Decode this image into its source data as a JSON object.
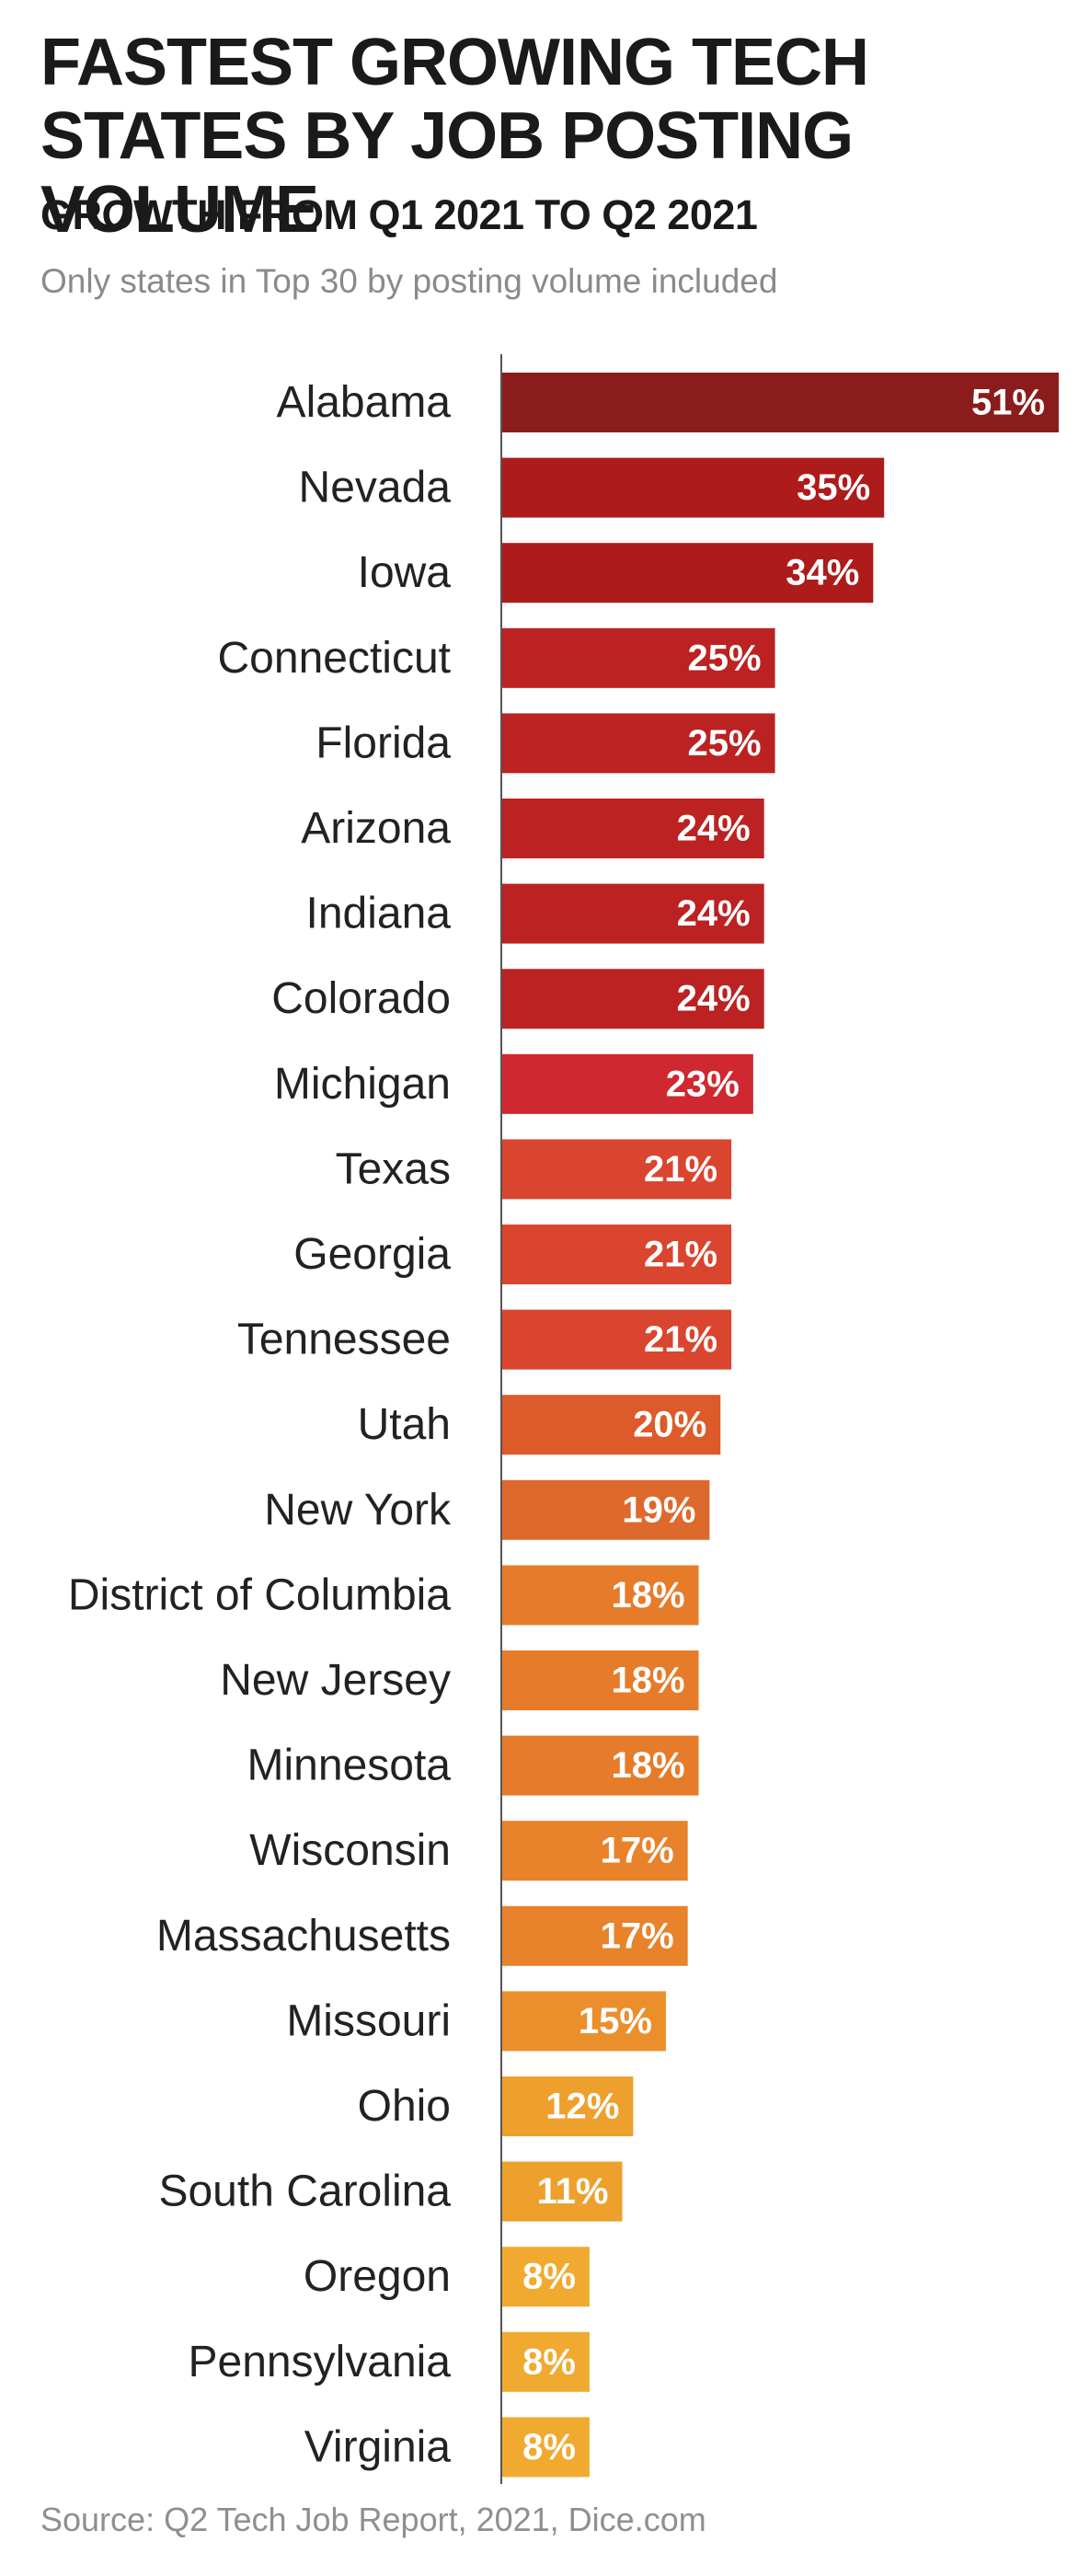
{
  "chart_data": {
    "type": "bar",
    "orientation": "horizontal",
    "title": "FASTEST GROWING TECH STATES BY JOB POSTING VOLUME",
    "subtitle": "GROWTH FROM Q1 2021 TO Q2 2021",
    "note": "Only states in Top 30 by posting volume included",
    "source": "Source: Q2 Tech Job Report, 2021, Dice.com",
    "categories": [
      "Alabama",
      "Nevada",
      "Iowa",
      "Connecticut",
      "Florida",
      "Arizona",
      "Indiana",
      "Colorado",
      "Michigan",
      "Texas",
      "Georgia",
      "Tennessee",
      "Utah",
      "New York",
      "District of Columbia",
      "New Jersey",
      "Minnesota",
      "Wisconsin",
      "Massachusetts",
      "Missouri",
      "Ohio",
      "South Carolina",
      "Oregon",
      "Pennsylvania",
      "Virginia"
    ],
    "values": [
      51,
      35,
      34,
      25,
      25,
      24,
      24,
      24,
      23,
      21,
      21,
      21,
      20,
      19,
      18,
      18,
      18,
      17,
      17,
      15,
      12,
      11,
      8,
      8,
      8
    ],
    "value_labels": [
      "51%",
      "35%",
      "34%",
      "25%",
      "25%",
      "24%",
      "24%",
      "24%",
      "23%",
      "21%",
      "21%",
      "21%",
      "20%",
      "19%",
      "18%",
      "18%",
      "18%",
      "17%",
      "17%",
      "15%",
      "12%",
      "11%",
      "8%",
      "8%",
      "8%"
    ],
    "colors": [
      "#8b1c1c",
      "#ae1b1b",
      "#ae1b1b",
      "#bc2222",
      "#bc2222",
      "#bc2222",
      "#bc2222",
      "#bc2222",
      "#cf2830",
      "#d9452e",
      "#d9452e",
      "#d9452e",
      "#dd5a2a",
      "#dd6a2c",
      "#e67b2a",
      "#e67b2a",
      "#e67b2a",
      "#e8822b",
      "#e8822b",
      "#eb8f2c",
      "#eea02d",
      "#eea02d",
      "#f0aa2f",
      "#f0aa2f",
      "#f0aa2f"
    ],
    "units": "%",
    "ylim": [
      0,
      51
    ],
    "grid": false,
    "legend": "none"
  }
}
